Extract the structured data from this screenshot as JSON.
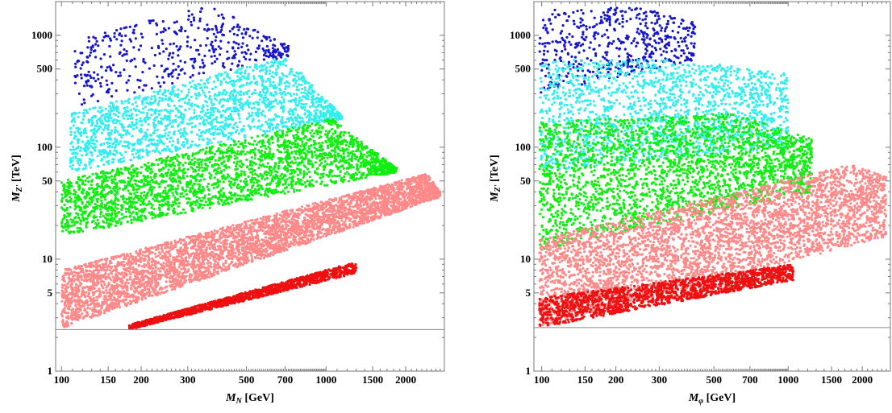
{
  "chart_data": [
    {
      "type": "scatter",
      "xlabel": "M_N [GeV]",
      "xlabel_main": "M",
      "xlabel_sub": "N",
      "xlabel_unit": " [GeV]",
      "ylabel_main": "M",
      "ylabel_sub": "Z'",
      "ylabel_unit": " [TeV]",
      "xscale": "log",
      "yscale": "log",
      "xlim": [
        95,
        2800
      ],
      "ylim": [
        1,
        2000
      ],
      "xticks_labeled": [
        "100",
        "150",
        "200",
        "300",
        "500",
        "700",
        "1000",
        "1500",
        "2000"
      ],
      "yticks_labeled": [
        "1",
        "5",
        "10",
        "50",
        "100",
        "500",
        "1000"
      ],
      "horizontal_line_y": 2.35,
      "grid": false,
      "series": [
        {
          "color": "#1515cc",
          "region": {
            "x_min": 112,
            "x_max": 720,
            "y_low_at_xmin": 230,
            "y_low_at_xmax": 650,
            "y_high_at_xmin": 900,
            "y_high_at_xmax": 800,
            "y_high_peak": 1900,
            "peak_x": 360
          },
          "count": 450
        },
        {
          "color": "#33eeee",
          "region": {
            "x_min": 108,
            "x_max": 1150,
            "y_low_at_xmin": 60,
            "y_low_at_xmax": 180,
            "y_high_at_xmin": 200,
            "y_high_at_xmax": 190,
            "y_high_peak": 650,
            "peak_x": 700
          },
          "count": 1800
        },
        {
          "color": "#11ee11",
          "region": {
            "x_min": 100,
            "x_max": 1850,
            "y_low_at_xmin": 16,
            "y_low_at_xmax": 60,
            "y_high_at_xmin": 50,
            "y_high_at_xmax": 65,
            "y_high_peak": 180,
            "peak_x": 1050
          },
          "count": 2600
        },
        {
          "color": "#ff8888",
          "region": {
            "x_min": 100,
            "x_max": 2700,
            "y_low_at_xmin": 2.4,
            "y_low_at_xmax": 36,
            "y_high_at_xmin": 8,
            "y_high_at_xmax": 40,
            "y_high_peak": 58,
            "peak_x": 2400
          },
          "count": 4200
        },
        {
          "color": "#ee1111",
          "region": {
            "x_min": 180,
            "x_max": 1300,
            "y_low_at_xmin": 2.35,
            "y_low_at_xmax": 7.5,
            "y_high_at_xmin": 2.6,
            "y_high_at_xmax": 9.5,
            "y_high_peak": 9.5,
            "peak_x": 1300
          },
          "count": 1400
        }
      ]
    },
    {
      "type": "scatter",
      "xlabel": "M_φ [GeV]",
      "xlabel_main": "M",
      "xlabel_sub": "φ",
      "xlabel_unit": " [GeV]",
      "ylabel_main": "M",
      "ylabel_sub": "Z'",
      "ylabel_unit": " [TeV]",
      "xscale": "log",
      "yscale": "log",
      "xlim": [
        93,
        2600
      ],
      "ylim": [
        1,
        2000
      ],
      "xticks_labeled": [
        "100",
        "150",
        "200",
        "300",
        "500",
        "700",
        "1000",
        "1500",
        "2000"
      ],
      "yticks_labeled": [
        "1",
        "5",
        "10",
        "50",
        "100",
        "500",
        "1000"
      ],
      "horizontal_line_y": 2.45,
      "grid": false,
      "series": [
        {
          "color": "#1515cc",
          "region": {
            "x_min": 98,
            "x_max": 420,
            "y_low_at_xmin": 300,
            "y_low_at_xmax": 600,
            "y_high_at_xmin": 1700,
            "y_high_at_xmax": 1300,
            "y_high_peak": 1800,
            "peak_x": 250
          },
          "count": 500
        },
        {
          "color": "#33eeee",
          "region": {
            "x_min": 98,
            "x_max": 1000,
            "y_low_at_xmin": 60,
            "y_low_at_xmax": 100,
            "y_high_at_xmin": 600,
            "y_high_at_xmax": 450,
            "y_high_peak": 600,
            "peak_x": 400
          },
          "count": 1700
        },
        {
          "color": "#11ee11",
          "region": {
            "x_min": 98,
            "x_max": 1250,
            "y_low_at_xmin": 12,
            "y_low_at_xmax": 40,
            "y_high_at_xmin": 170,
            "y_high_at_xmax": 120,
            "y_high_peak": 200,
            "peak_x": 600
          },
          "count": 2600
        },
        {
          "color": "#ff8888",
          "region": {
            "x_min": 98,
            "x_max": 2500,
            "y_low_at_xmin": 2.5,
            "y_low_at_xmax": 16,
            "y_high_at_xmin": 15,
            "y_high_at_xmax": 55,
            "y_high_peak": 70,
            "peak_x": 1800
          },
          "count": 3800
        },
        {
          "color": "#ee1111",
          "region": {
            "x_min": 98,
            "x_max": 1050,
            "y_low_at_xmin": 2.45,
            "y_low_at_xmax": 6.5,
            "y_high_at_xmin": 4.5,
            "y_high_at_xmax": 9,
            "y_high_peak": 9,
            "peak_x": 1050
          },
          "count": 1600
        }
      ]
    }
  ]
}
